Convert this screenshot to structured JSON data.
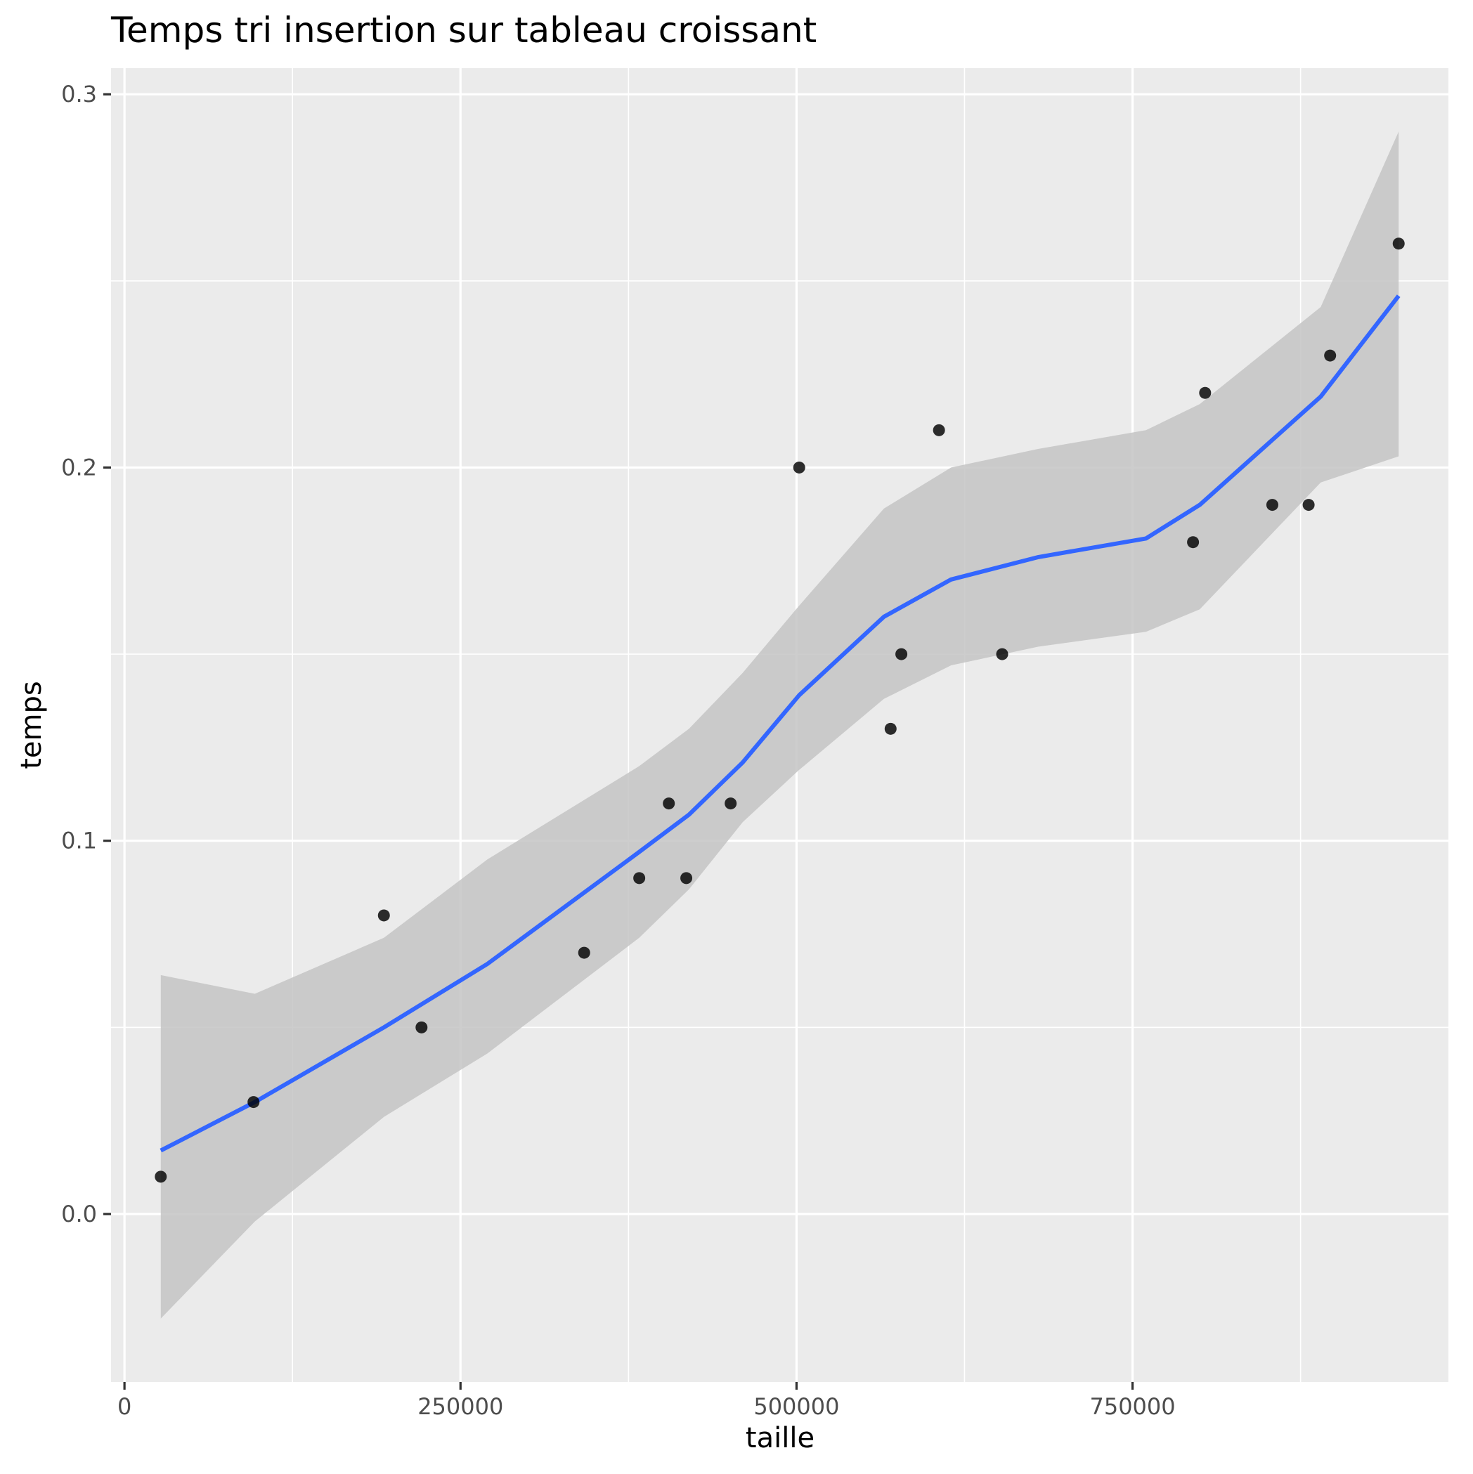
{
  "chart_data": {
    "type": "scatter",
    "title": "Temps tri insertion sur tableau croissant",
    "xlabel": "taille",
    "ylabel": "temps",
    "xlim": [
      -10000,
      985000
    ],
    "ylim": [
      -0.045,
      0.307
    ],
    "x_ticks": [
      0,
      250000,
      500000,
      750000
    ],
    "x_tick_labels": [
      "0",
      "250000",
      "500000",
      "750000"
    ],
    "y_ticks": [
      0.0,
      0.1,
      0.2,
      0.3
    ],
    "y_tick_labels": [
      "0.0",
      "0.1",
      "0.2",
      "0.3"
    ],
    "grid": true,
    "points": [
      {
        "x": 27000,
        "y": 0.01
      },
      {
        "x": 96000,
        "y": 0.03
      },
      {
        "x": 193000,
        "y": 0.08
      },
      {
        "x": 221000,
        "y": 0.05
      },
      {
        "x": 342000,
        "y": 0.07
      },
      {
        "x": 383000,
        "y": 0.09
      },
      {
        "x": 405000,
        "y": 0.11
      },
      {
        "x": 418000,
        "y": 0.09
      },
      {
        "x": 451000,
        "y": 0.11
      },
      {
        "x": 502000,
        "y": 0.2
      },
      {
        "x": 570000,
        "y": 0.13
      },
      {
        "x": 578000,
        "y": 0.15
      },
      {
        "x": 606000,
        "y": 0.21
      },
      {
        "x": 653000,
        "y": 0.15
      },
      {
        "x": 795000,
        "y": 0.18
      },
      {
        "x": 804000,
        "y": 0.22
      },
      {
        "x": 854000,
        "y": 0.19
      },
      {
        "x": 881000,
        "y": 0.19
      },
      {
        "x": 897000,
        "y": 0.23
      },
      {
        "x": 948000,
        "y": 0.26
      }
    ],
    "smooth": {
      "x": [
        27000,
        97000,
        193000,
        270000,
        383000,
        420000,
        460000,
        502000,
        565000,
        615000,
        680000,
        760000,
        800000,
        890000,
        948000
      ],
      "y": [
        0.017,
        0.03,
        0.05,
        0.067,
        0.097,
        0.107,
        0.121,
        0.139,
        0.16,
        0.17,
        0.176,
        0.181,
        0.19,
        0.219,
        0.246
      ],
      "lower": [
        -0.028,
        -0.002,
        0.026,
        0.043,
        0.074,
        0.087,
        0.105,
        0.119,
        0.138,
        0.147,
        0.152,
        0.156,
        0.162,
        0.196,
        0.203
      ],
      "upper": [
        0.064,
        0.059,
        0.074,
        0.095,
        0.12,
        0.13,
        0.145,
        0.163,
        0.189,
        0.2,
        0.205,
        0.21,
        0.217,
        0.243,
        0.29
      ]
    },
    "colors": {
      "panel": "#ebebeb",
      "grid": "#ffffff",
      "point": "#000000",
      "line": "#3366ff",
      "ribbon": "#c4c4c4"
    }
  }
}
